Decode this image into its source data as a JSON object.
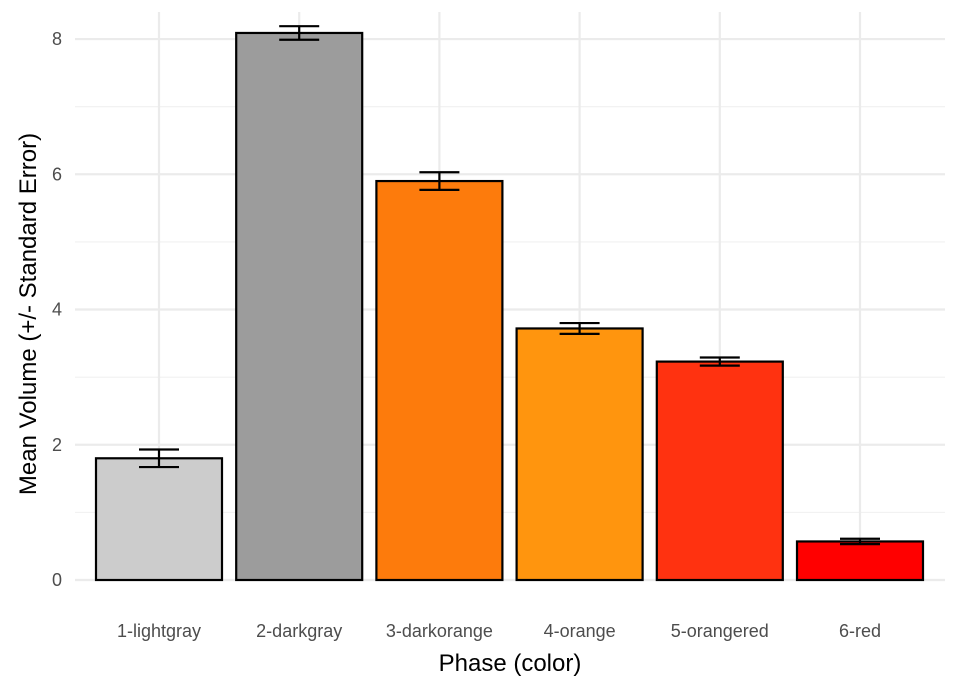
{
  "chart_data": {
    "type": "bar",
    "title": "",
    "xlabel": "Phase (color)",
    "ylabel": "Mean Volume (+/- Standard Error)",
    "categories": [
      "1-lightgray",
      "2-darkgray",
      "3-darkorange",
      "4-orange",
      "5-orangered",
      "6-red"
    ],
    "values": [
      1.8,
      8.09,
      5.9,
      3.72,
      3.23,
      0.57
    ],
    "error": [
      0.13,
      0.1,
      0.13,
      0.08,
      0.06,
      0.04
    ],
    "colors": [
      "#cccccc",
      "#9c9c9c",
      "#fd7b0c",
      "#ff950e",
      "#ff3210",
      "#ff0000"
    ],
    "ylim": [
      0,
      8.4
    ],
    "yticks": [
      0,
      2,
      4,
      6,
      8
    ],
    "grid": true,
    "legend": "none"
  }
}
